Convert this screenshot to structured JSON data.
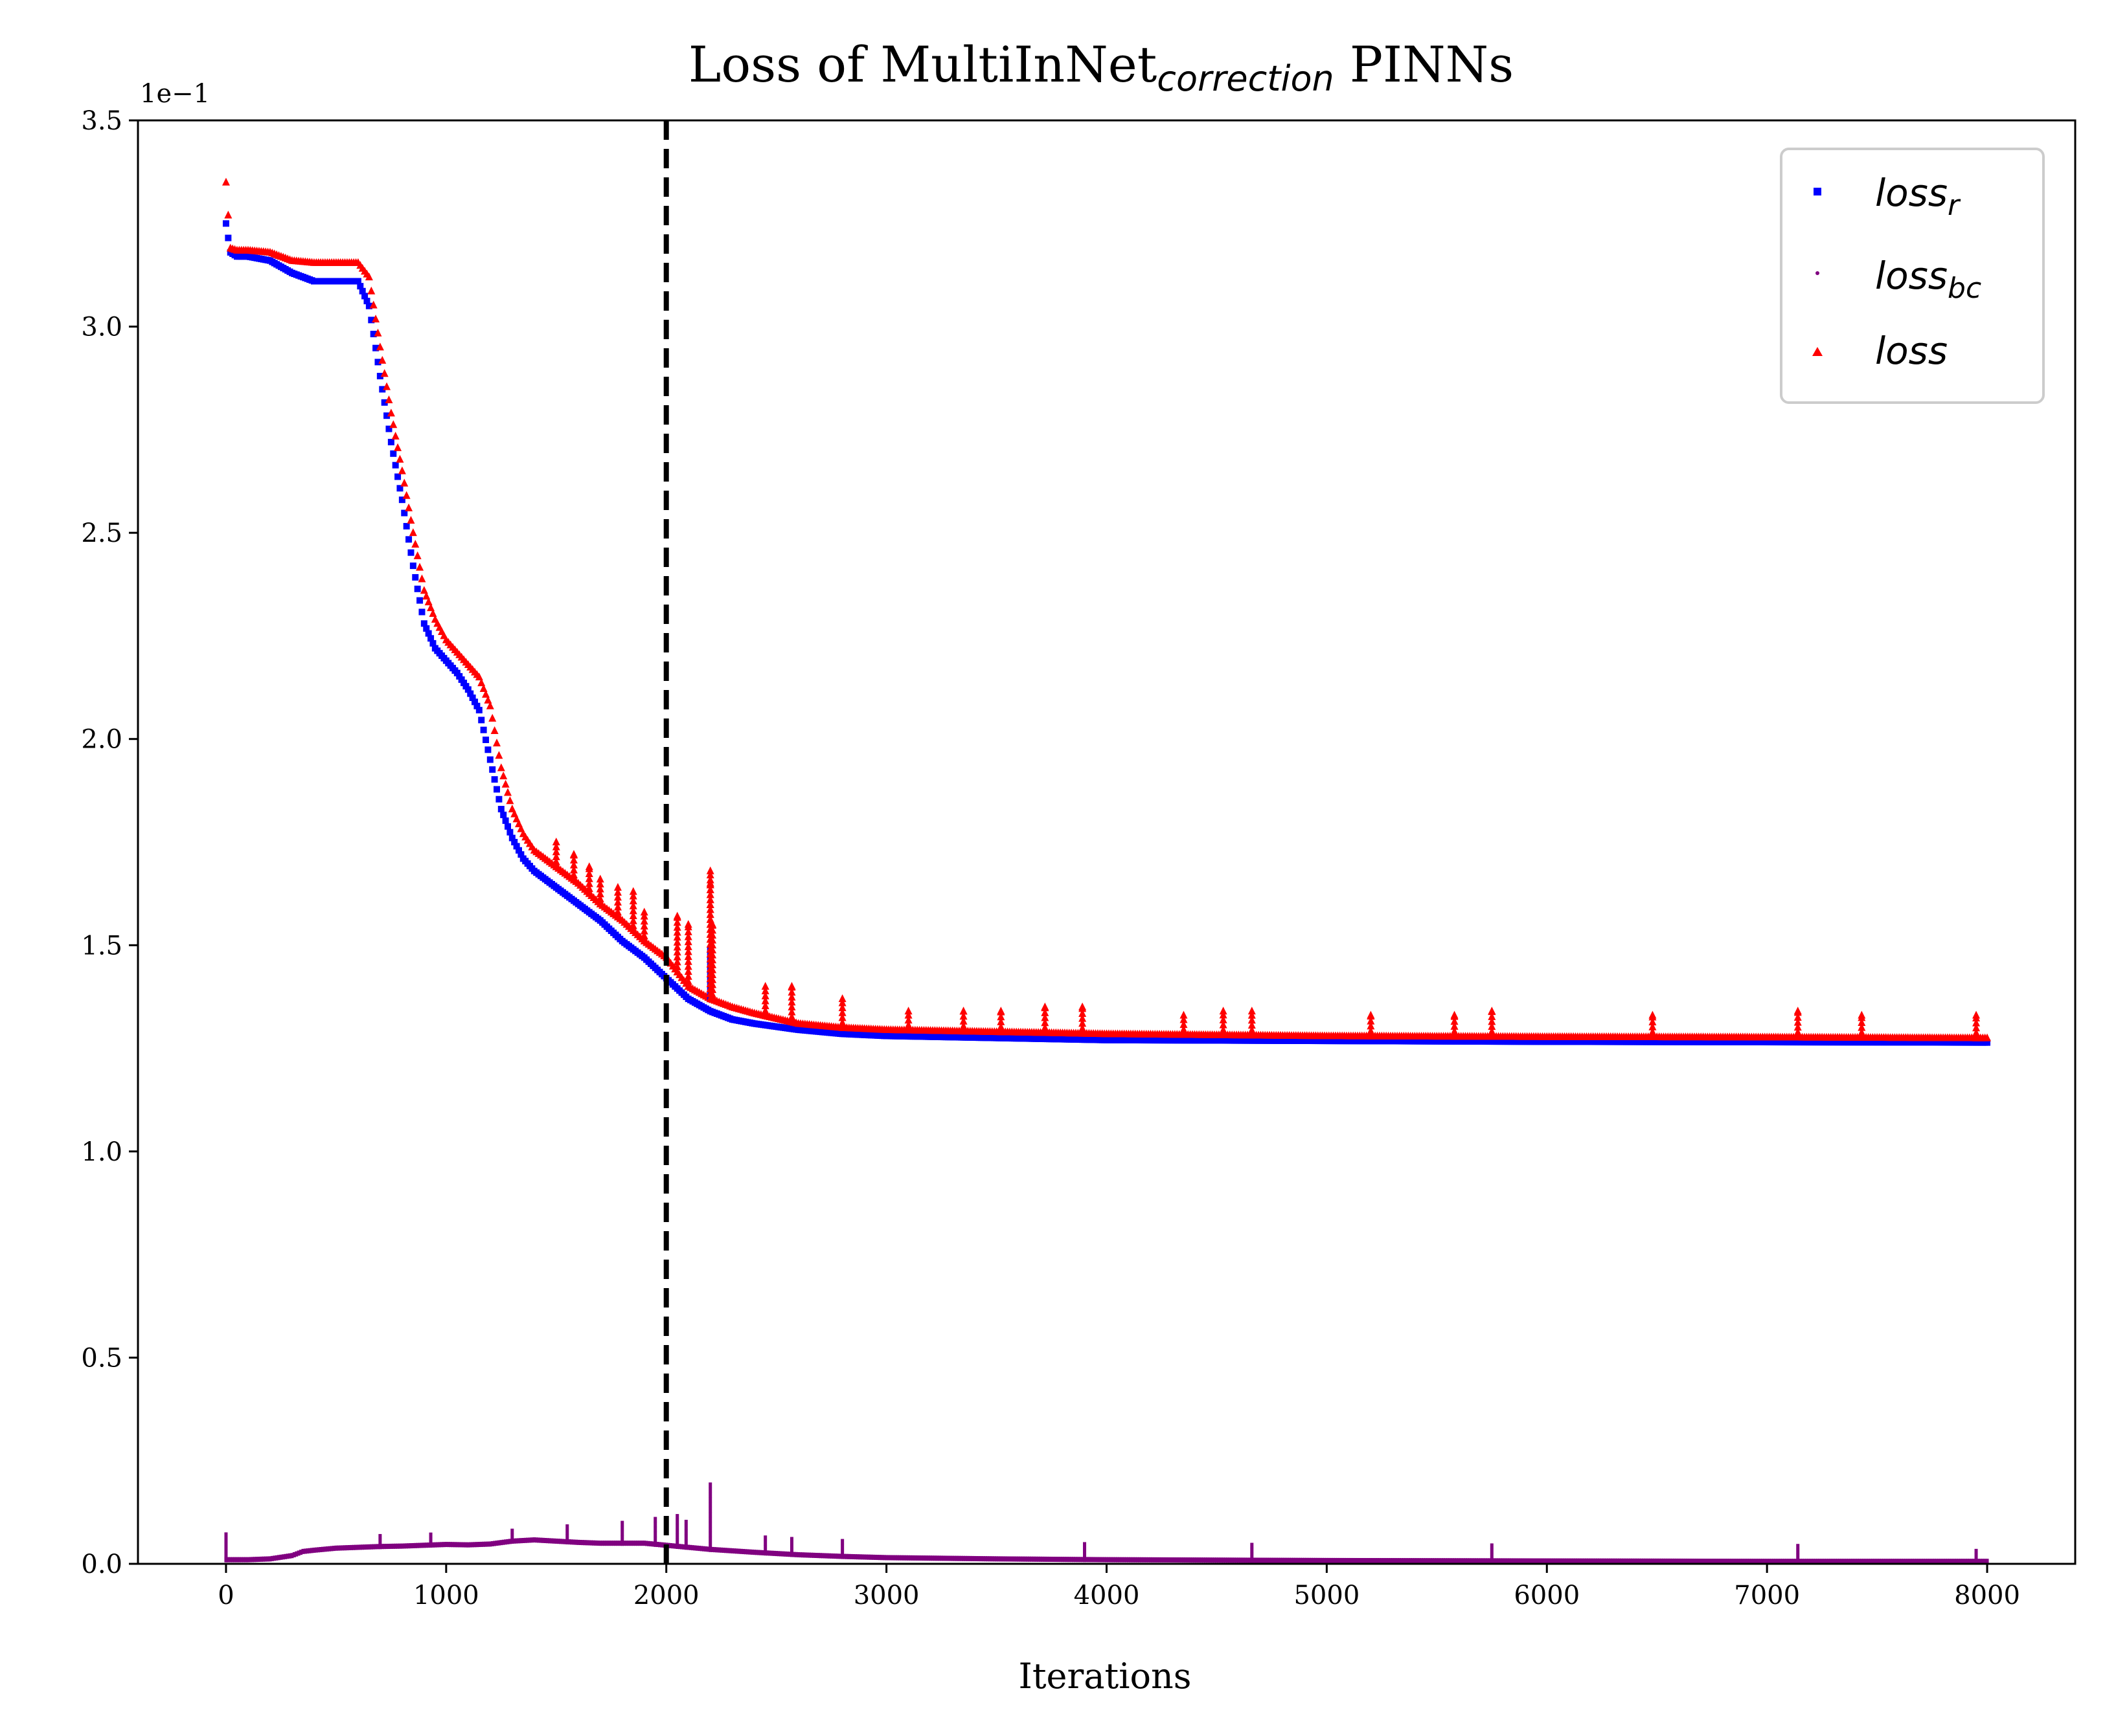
{
  "chart_data": {
    "type": "scatter",
    "title": {
      "main": "Loss of MultiInNet",
      "subscript": "correction",
      "suffix": " PINNs"
    },
    "xlabel": "Iterations",
    "ylabel": "",
    "y_scale_note": "1e−1",
    "xlim": [
      -400,
      8400
    ],
    "ylim": [
      0,
      3.5
    ],
    "x_ticks": [
      0,
      1000,
      2000,
      3000,
      4000,
      5000,
      6000,
      7000,
      8000
    ],
    "x_tick_labels": [
      "0",
      "1000",
      "2000",
      "3000",
      "4000",
      "5000",
      "6000",
      "7000",
      "8000"
    ],
    "y_ticks": [
      0,
      0.5,
      1.0,
      1.5,
      2.0,
      2.5,
      3.0,
      3.5
    ],
    "y_tick_labels": [
      "0.0",
      "0.5",
      "1.0",
      "1.5",
      "2.0",
      "2.5",
      "3.0",
      "3.5"
    ],
    "grid": false,
    "legend_position": "top-right",
    "vertical_line": {
      "x": 2000,
      "style": "dashed",
      "color": "#000000"
    },
    "series": [
      {
        "name": "loss",
        "name_sub": "r",
        "marker": "square",
        "color": "#0000ff",
        "x": [
          0,
          20,
          50,
          100,
          200,
          300,
          400,
          500,
          600,
          650,
          700,
          750,
          800,
          850,
          900,
          950,
          1000,
          1050,
          1100,
          1150,
          1200,
          1250,
          1300,
          1350,
          1400,
          1500,
          1600,
          1700,
          1800,
          1900,
          2000,
          2100,
          2200,
          2300,
          2400,
          2600,
          2800,
          3000,
          3500,
          4000,
          5000,
          6000,
          7000,
          8000
        ],
        "y": [
          3.25,
          3.18,
          3.17,
          3.17,
          3.16,
          3.13,
          3.11,
          3.11,
          3.11,
          3.05,
          2.88,
          2.72,
          2.58,
          2.42,
          2.28,
          2.22,
          2.19,
          2.16,
          2.12,
          2.07,
          1.95,
          1.83,
          1.76,
          1.71,
          1.68,
          1.64,
          1.6,
          1.56,
          1.51,
          1.47,
          1.42,
          1.37,
          1.34,
          1.32,
          1.31,
          1.295,
          1.285,
          1.28,
          1.275,
          1.27,
          1.268,
          1.266,
          1.265,
          1.264
        ]
      },
      {
        "name": "loss",
        "name_sub": "bc",
        "marker": "point",
        "color": "#800080",
        "x": [
          0,
          100,
          200,
          300,
          350,
          400,
          500,
          600,
          700,
          800,
          900,
          1000,
          1100,
          1200,
          1300,
          1400,
          1500,
          1600,
          1700,
          1800,
          1900,
          2000,
          2200,
          2400,
          2600,
          2800,
          3000,
          3500,
          4000,
          4500,
          5000,
          6000,
          7000,
          8000
        ],
        "y": [
          0.01,
          0.01,
          0.012,
          0.02,
          0.03,
          0.033,
          0.038,
          0.04,
          0.042,
          0.043,
          0.045,
          0.047,
          0.046,
          0.048,
          0.055,
          0.058,
          0.055,
          0.052,
          0.05,
          0.05,
          0.05,
          0.045,
          0.035,
          0.028,
          0.022,
          0.018,
          0.015,
          0.012,
          0.01,
          0.009,
          0.008,
          0.007,
          0.006,
          0.006
        ]
      },
      {
        "name": "loss",
        "name_sub": "",
        "marker": "triangle",
        "color": "#ff0000",
        "x": [
          0,
          20,
          50,
          100,
          200,
          300,
          400,
          500,
          600,
          650,
          700,
          750,
          800,
          850,
          900,
          950,
          1000,
          1050,
          1100,
          1150,
          1200,
          1250,
          1300,
          1350,
          1400,
          1500,
          1600,
          1700,
          1800,
          1900,
          2000,
          2100,
          2200,
          2300,
          2400,
          2600,
          2800,
          3000,
          3500,
          4000,
          5000,
          6000,
          7000,
          8000
        ],
        "y": [
          3.35,
          3.19,
          3.185,
          3.185,
          3.18,
          3.16,
          3.155,
          3.155,
          3.155,
          3.12,
          2.95,
          2.79,
          2.65,
          2.5,
          2.36,
          2.29,
          2.24,
          2.21,
          2.18,
          2.15,
          2.08,
          1.93,
          1.83,
          1.77,
          1.73,
          1.69,
          1.65,
          1.6,
          1.56,
          1.51,
          1.47,
          1.4,
          1.37,
          1.35,
          1.335,
          1.31,
          1.3,
          1.295,
          1.29,
          1.285,
          1.28,
          1.278,
          1.277,
          1.275
        ]
      }
    ],
    "spikes": {
      "loss_r": [
        [
          2200,
          1.49
        ]
      ],
      "loss": [
        [
          2050,
          1.57
        ],
        [
          2100,
          1.55
        ],
        [
          2200,
          1.68
        ],
        [
          2200,
          1.65
        ],
        [
          2210,
          1.55
        ],
        [
          1900,
          1.58
        ],
        [
          1850,
          1.63
        ],
        [
          1780,
          1.64
        ],
        [
          1700,
          1.66
        ],
        [
          1650,
          1.69
        ],
        [
          1580,
          1.72
        ],
        [
          1500,
          1.75
        ],
        [
          2450,
          1.4
        ],
        [
          2570,
          1.4
        ],
        [
          2800,
          1.37
        ],
        [
          3100,
          1.34
        ],
        [
          3350,
          1.34
        ],
        [
          3520,
          1.34
        ],
        [
          3720,
          1.35
        ],
        [
          3890,
          1.35
        ],
        [
          4350,
          1.33
        ],
        [
          4530,
          1.34
        ],
        [
          4660,
          1.34
        ],
        [
          5200,
          1.33
        ],
        [
          5580,
          1.33
        ],
        [
          5750,
          1.34
        ],
        [
          6480,
          1.33
        ],
        [
          7140,
          1.34
        ],
        [
          7430,
          1.33
        ],
        [
          7950,
          1.33
        ]
      ],
      "loss_bc": [
        [
          0,
          0.07
        ],
        [
          700,
          0.07
        ],
        [
          930,
          0.08
        ],
        [
          1300,
          0.09
        ],
        [
          1550,
          0.09
        ],
        [
          1800,
          0.1
        ],
        [
          1950,
          0.11
        ],
        [
          2050,
          0.12
        ],
        [
          2090,
          0.11
        ],
        [
          2200,
          0.2
        ],
        [
          2450,
          0.07
        ],
        [
          2570,
          0.07
        ],
        [
          2800,
          0.06
        ],
        [
          3900,
          0.05
        ],
        [
          4660,
          0.05
        ],
        [
          5750,
          0.05
        ],
        [
          7140,
          0.05
        ],
        [
          7950,
          0.04
        ]
      ]
    }
  }
}
